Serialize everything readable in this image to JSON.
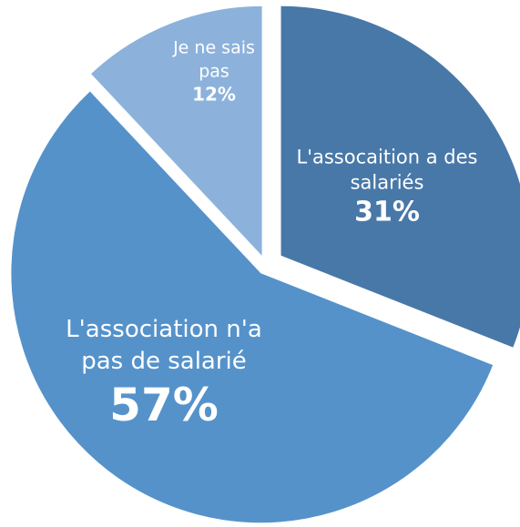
{
  "chart_data": {
    "type": "pie",
    "categories": [
      "L'assocaition a des salariés",
      "L'association n'a pas de salarié",
      "Je ne sais pas"
    ],
    "values": [
      31,
      57,
      12
    ],
    "value_labels": [
      "31%",
      "57%",
      "12%"
    ],
    "colors": [
      "#4878a8",
      "#5592ca",
      "#8cb2dc"
    ]
  }
}
